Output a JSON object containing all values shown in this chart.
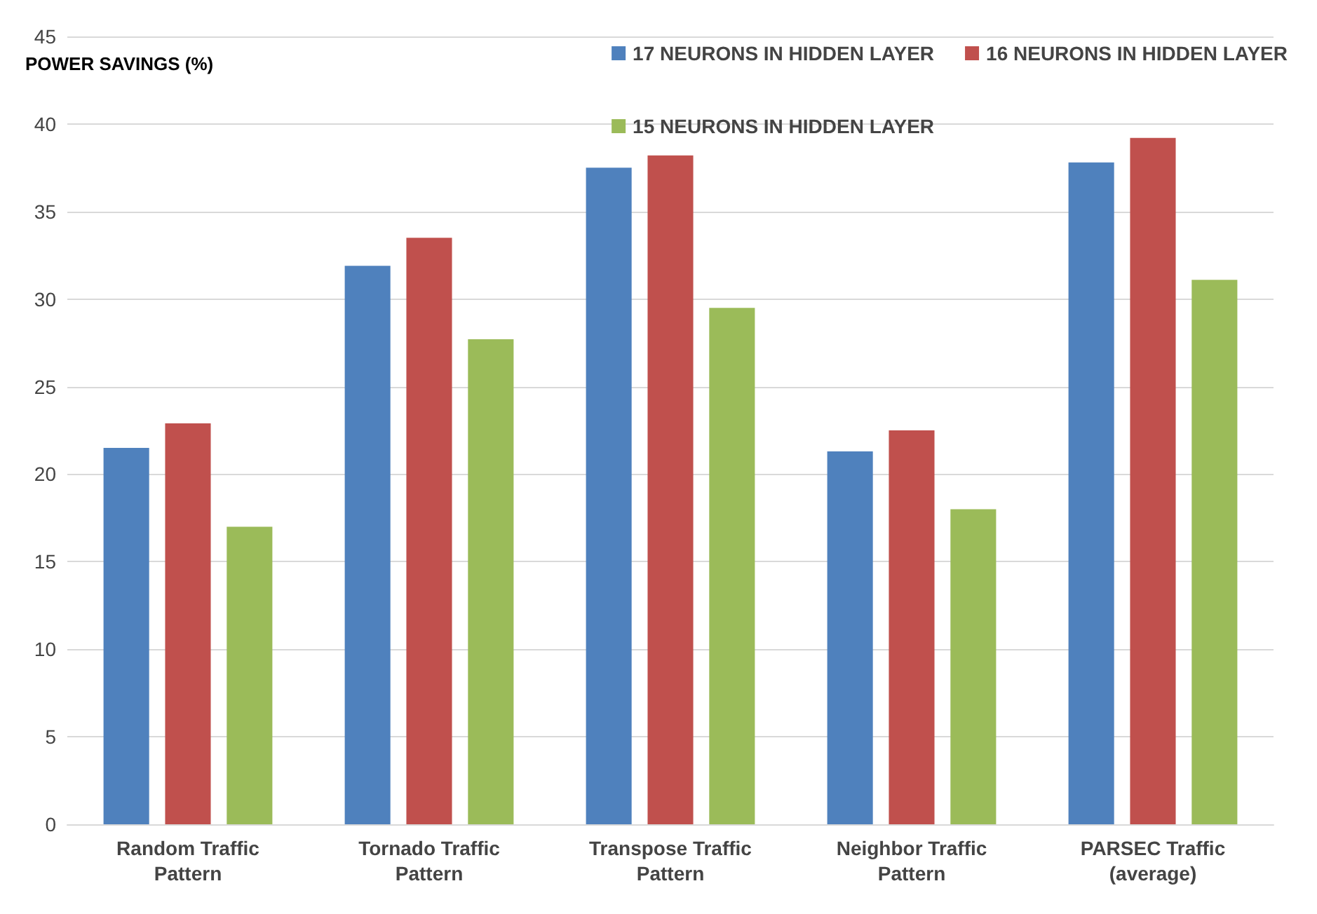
{
  "chart_data": {
    "type": "bar",
    "ylabel": "POWER SAVINGS (%)",
    "categories": [
      "Random Traffic\nPattern",
      "Tornado Traffic\nPattern",
      "Transpose Traffic\nPattern",
      "Neighbor Traffic\nPattern",
      "PARSEC Traffic\n(average)"
    ],
    "series": [
      {
        "name": "17 NEURONS IN HIDDEN LAYER",
        "color": "#4f81bd",
        "values": [
          21.5,
          31.9,
          37.5,
          21.3,
          37.8
        ]
      },
      {
        "name": "16 NEURONS IN HIDDEN LAYER",
        "color": "#c0504d",
        "values": [
          22.9,
          33.5,
          38.2,
          22.5,
          39.2
        ]
      },
      {
        "name": "15 NEURONS IN HIDDEN LAYER",
        "color": "#9bbb59",
        "values": [
          17.0,
          27.7,
          29.5,
          18.0,
          31.1
        ]
      }
    ],
    "ylim": [
      0,
      45
    ],
    "yticks": [
      0,
      5,
      10,
      15,
      20,
      25,
      30,
      35,
      40,
      45
    ],
    "grid": "y",
    "legend": "top right"
  }
}
